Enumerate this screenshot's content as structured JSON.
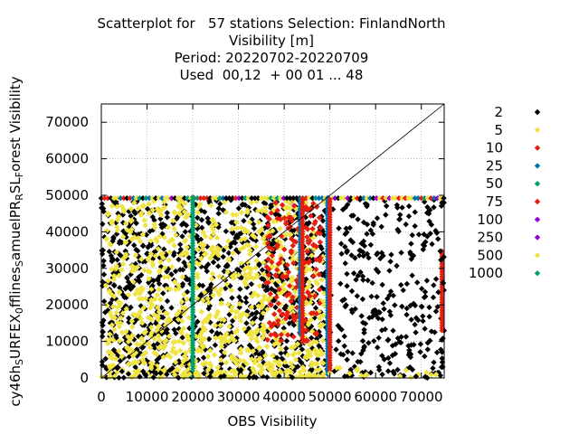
{
  "title_lines": [
    "Scatterplot for   57 stations Selection: FinlandNorth",
    "Visibility [m]",
    "Period: 20220702-20220709",
    "Used  00,12  + 00 01 ... 48"
  ],
  "chart_data": {
    "type": "scatter",
    "xlabel": "OBS Visibility",
    "ylabel": "cy46h_SURFEX_0fflines_SamuelPR_RSL_Forest Visibility",
    "xlim": [
      0,
      75000
    ],
    "ylim": [
      0,
      75000
    ],
    "xticks": [
      0,
      10000,
      20000,
      30000,
      40000,
      50000,
      60000,
      70000
    ],
    "xtick_labels": [
      "0",
      "10000",
      "20000",
      "30000",
      "40000",
      "50000",
      "60000",
      "70000"
    ],
    "yticks": [
      0,
      10000,
      20000,
      30000,
      40000,
      50000,
      60000,
      70000
    ],
    "ytick_labels": [
      "0",
      "10000",
      "20000",
      "30000",
      "40000",
      "50000",
      "60000",
      "70000"
    ],
    "grid": true,
    "diagonal": true,
    "legend_placement": "right",
    "series": [
      {
        "name": "2",
        "color": "#000000"
      },
      {
        "name": "5",
        "color": "#f0e442"
      },
      {
        "name": "10",
        "color": "#e51e10"
      },
      {
        "name": "25",
        "color": "#0072b2"
      },
      {
        "name": "50",
        "color": "#009e73"
      },
      {
        "name": "75",
        "color": "#e51e10"
      },
      {
        "name": "100",
        "color": "#9400d3"
      },
      {
        "name": "250",
        "color": "#9400d3"
      },
      {
        "name": "500",
        "color": "#f0e442"
      },
      {
        "name": "1000",
        "color": "#009e73"
      }
    ]
  }
}
